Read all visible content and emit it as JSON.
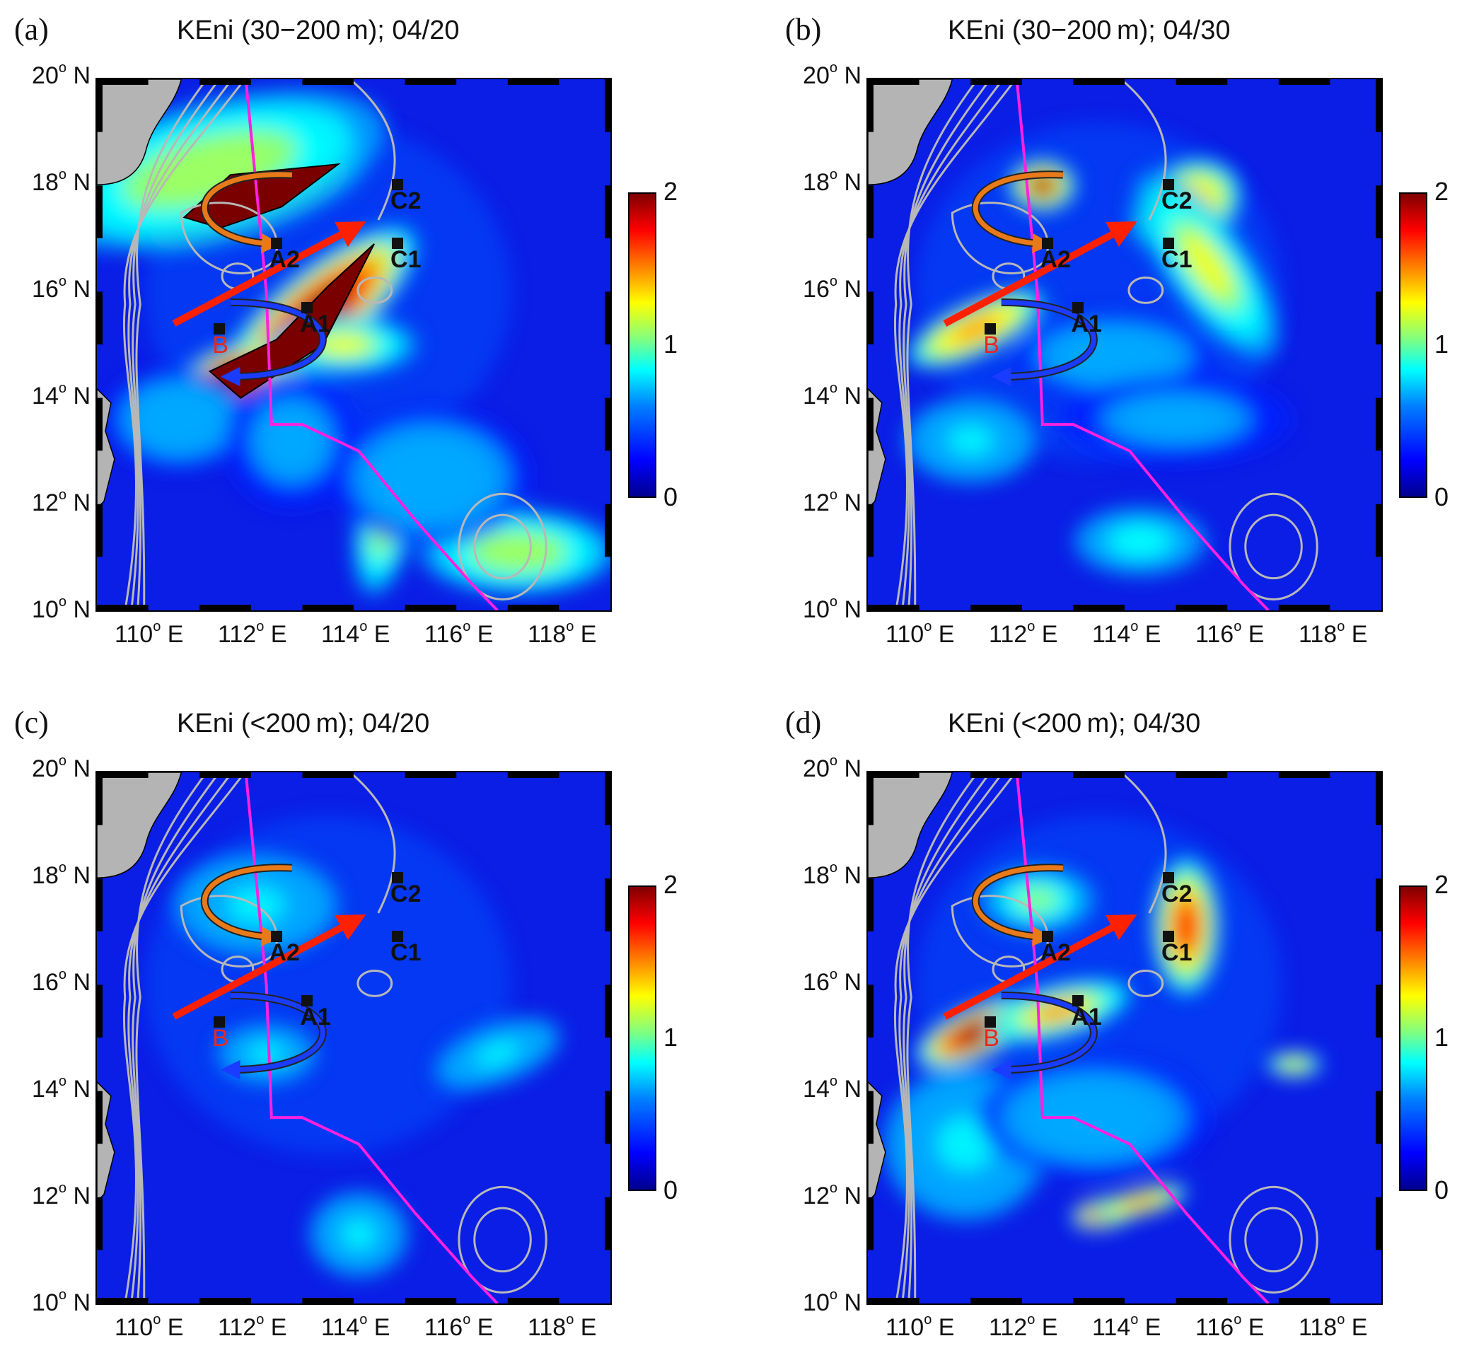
{
  "panels": [
    {
      "label": "(a)",
      "title": "KEni (30−200 m); 04/20"
    },
    {
      "label": "(b)",
      "title": "KEni (30−200 m); 04/30"
    },
    {
      "label": "(c)",
      "title": "KEni (<200 m); 04/20"
    },
    {
      "label": "(d)",
      "title": "KEni (<200 m); 04/30"
    }
  ],
  "axes": {
    "lat_labels": [
      "20",
      "18",
      "16",
      "14",
      "12",
      "10"
    ],
    "lat_suffix": "N",
    "lon_labels": [
      "110",
      "112",
      "114",
      "116",
      "118"
    ],
    "lon_suffix": "E",
    "degree": "o"
  },
  "colorbar": {
    "max_label": "2",
    "mid_label": "1",
    "min_label": "0",
    "colormap": "jet"
  },
  "sites": {
    "a2": "A2",
    "a1": "A1",
    "c2": "C2",
    "c1": "C1",
    "b": "B"
  },
  "colors": {
    "typhoon_track": "#ff20e0",
    "arrow_red": "#ff2000",
    "arrow_orange": "#e87a1a",
    "arrow_blue": "#1a3cff",
    "contour": "#b8b8b8",
    "land": "#b4b4b4"
  }
}
